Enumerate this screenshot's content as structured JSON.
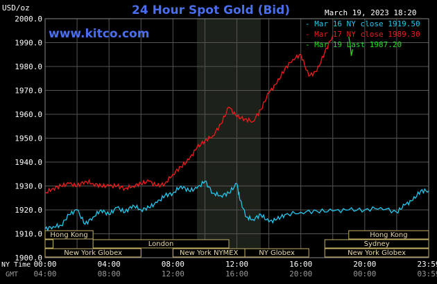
{
  "header": {
    "unit": "USD/oz",
    "title": "24 Hour Spot Gold (Bid)",
    "watermark": "www.kitco.com",
    "timestamp": "March 19, 2023 18:20"
  },
  "legend": [
    {
      "text": "Mar 16 NY close 1919.50",
      "color": "#22c8ee"
    },
    {
      "text": "Mar 17 NY close 1989.30",
      "color": "#ee1c1c"
    },
    {
      "text": "Mar 19 Last 1987.20",
      "color": "#22dd22"
    }
  ],
  "chart_data": {
    "type": "line",
    "title": "24 Hour Spot Gold (Bid)",
    "ylabel": "USD/oz",
    "ylim": [
      1900.0,
      2000.0
    ],
    "yticks": [
      "2000.0",
      "1990.0",
      "1980.0",
      "1970.0",
      "1960.0",
      "1950.0",
      "1940.0",
      "1930.0",
      "1920.0",
      "1910.0",
      "1900.0"
    ],
    "xlim": [
      0,
      24
    ],
    "x_tick_hours": [
      0,
      4,
      8,
      12,
      16,
      20,
      24
    ],
    "xticks_ny": [
      "00:00",
      "04:00",
      "08:00",
      "12:00",
      "16:00",
      "20:00",
      "23:59"
    ],
    "xticks_gmt": [
      "04:00",
      "08:00",
      "12:00",
      "16:00",
      "20:00",
      "00:00",
      "03:59"
    ],
    "xaxis_row_labels": [
      "NY Time",
      "GMT"
    ],
    "grid": true,
    "legend_position": "top-right",
    "shaded_hours": [
      9.5,
      13.5
    ],
    "series": [
      {
        "name": "Mar 16 NY close 1919.50",
        "color": "#22c8ee",
        "x": [
          0,
          0.5,
          1,
          1.5,
          2,
          2.5,
          3,
          3.5,
          4,
          4.5,
          5,
          5.5,
          6,
          6.5,
          7,
          7.5,
          8,
          8.5,
          9,
          9.5,
          10,
          10.5,
          11,
          11.5,
          12,
          12.2,
          12.6,
          13,
          13.5,
          14,
          14.5,
          15,
          16,
          17,
          18,
          19,
          20,
          21,
          22,
          22.5,
          23,
          23.5,
          24
        ],
        "y": [
          1912,
          1913,
          1913.5,
          1918,
          1920,
          1914,
          1917,
          1920,
          1918,
          1921,
          1919,
          1922,
          1920,
          1921,
          1923,
          1926,
          1927,
          1930,
          1928,
          1929,
          1932,
          1927,
          1926,
          1927,
          1931,
          1924,
          1917,
          1916,
          1918,
          1915,
          1916,
          1918,
          1919,
          1919.5,
          1919.5,
          1920,
          1920,
          1921,
          1919,
          1922,
          1924,
          1928,
          1928
        ]
      },
      {
        "name": "Mar 17 NY close 1989.30",
        "color": "#ee1c1c",
        "x": [
          0,
          0.5,
          1,
          1.5,
          2,
          2.5,
          3,
          3.5,
          4,
          4.5,
          5,
          5.5,
          6,
          6.5,
          7,
          7.5,
          8,
          8.5,
          9,
          9.5,
          10,
          10.5,
          11,
          11.5,
          12,
          12.5,
          13,
          13.5,
          14,
          14.5,
          15,
          15.5,
          16,
          16.5,
          17,
          17.5,
          18
        ],
        "y": [
          1927,
          1929,
          1930,
          1931,
          1930,
          1932,
          1931,
          1930,
          1930,
          1930,
          1929,
          1930,
          1931,
          1932,
          1930,
          1931,
          1935,
          1938,
          1941,
          1946,
          1949,
          1951,
          1956,
          1963,
          1959,
          1958,
          1957,
          1962,
          1969,
          1973,
          1979,
          1983,
          1985,
          1976,
          1978,
          1986,
          1993
        ]
      },
      {
        "name": "Mar 19 Last 1987.20",
        "color": "#22dd22",
        "x": [
          19.0,
          19.08,
          19.16,
          19.24
        ],
        "y": [
          1992.5,
          1989.5,
          1984.5,
          1987.2
        ]
      }
    ]
  },
  "sessions": {
    "row1": [
      {
        "label": "Hong Kong",
        "start": 0,
        "end": 3
      },
      {
        "label": "Hong Kong",
        "start": 19,
        "end": 24
      }
    ],
    "row2": [
      {
        "label": "",
        "start": 0,
        "end": 0.5
      },
      {
        "label": "London",
        "start": 3,
        "end": 11.5
      },
      {
        "label": "Sydney",
        "start": 17.5,
        "end": 24
      }
    ],
    "row3": [
      {
        "label": "New York Globex",
        "start": 0,
        "end": 6
      },
      {
        "label": "New York NYMEX",
        "start": 8,
        "end": 12.5
      },
      {
        "label": "NY Globex",
        "start": 12.5,
        "end": 16.5
      },
      {
        "label": "New York Globex",
        "start": 17.5,
        "end": 24
      }
    ]
  }
}
